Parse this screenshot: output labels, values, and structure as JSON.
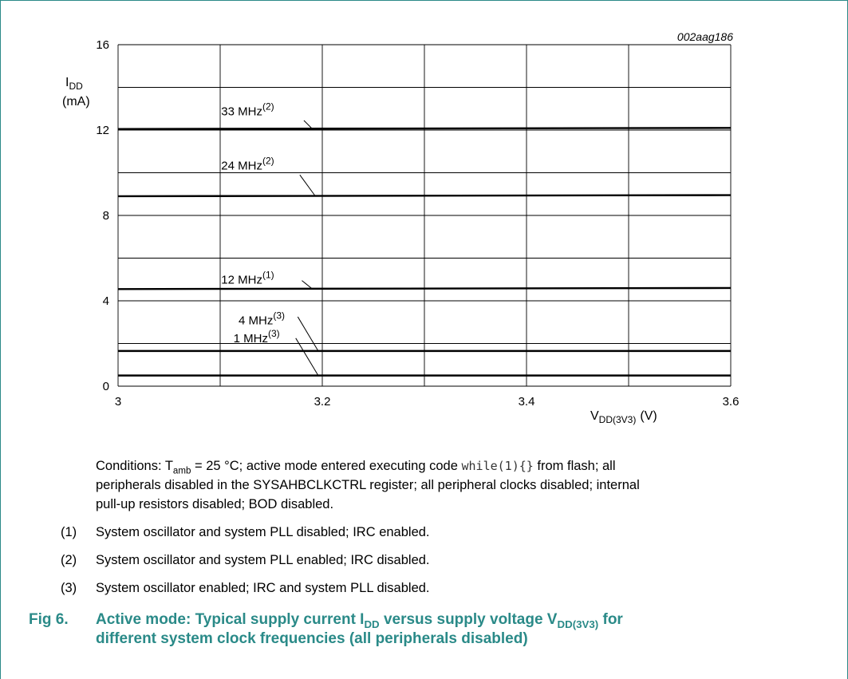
{
  "chart_data": {
    "type": "line",
    "figure_id": "002aag186",
    "ylabel_main": "I",
    "ylabel_sub": "DD",
    "ylabel_unit": "(mA)",
    "xlabel_main": "V",
    "xlabel_sub": "DD(3V3)",
    "xlabel_unit": "(V)",
    "xlim": [
      3.0,
      3.6
    ],
    "ylim": [
      0,
      16
    ],
    "grid": true,
    "x_ticks": [
      3.0,
      3.1,
      3.2,
      3.3,
      3.4,
      3.5,
      3.6
    ],
    "x_tick_labels": [
      "3",
      "",
      "3.2",
      "",
      "3.4",
      "",
      "3.6"
    ],
    "y_ticks": [
      0,
      2,
      4,
      6,
      8,
      10,
      12,
      14,
      16
    ],
    "y_tick_labels": [
      "0",
      "",
      "4",
      "",
      "8",
      "",
      "12",
      "",
      "16"
    ],
    "x": [
      3.0,
      3.6
    ],
    "series": [
      {
        "label": "33 MHz",
        "note": "(2)",
        "values": [
          12.05,
          12.1
        ]
      },
      {
        "label": "24 MHz",
        "note": "(2)",
        "values": [
          8.9,
          8.95
        ]
      },
      {
        "label": "12 MHz",
        "note": "(1)",
        "values": [
          4.55,
          4.6
        ]
      },
      {
        "label": "4 MHz",
        "note": "(3)",
        "values": [
          1.65,
          1.65
        ]
      },
      {
        "label": "1 MHz",
        "note": "(3)",
        "values": [
          0.5,
          0.5
        ]
      }
    ]
  },
  "conditions": {
    "line1_pre": "Conditions: T",
    "tamb_sub": "amb",
    "line1_mid": " = 25 °C; active mode entered executing code ",
    "code": "while(1){}",
    "line1_post": " from flash; all",
    "line2": "peripherals disabled in the SYSAHBCLKCTRL register; all peripheral clocks disabled; internal",
    "line3": "pull-up resistors disabled; BOD disabled."
  },
  "notes": [
    {
      "num": "(1)",
      "text": "System oscillator and system PLL disabled; IRC enabled."
    },
    {
      "num": "(2)",
      "text": "System oscillator and system PLL enabled; IRC disabled."
    },
    {
      "num": "(3)",
      "text": "System oscillator enabled; IRC and system PLL disabled."
    }
  ],
  "caption": {
    "fig": "Fig 6.",
    "l1_a": "Active mode: Typical supply current I",
    "l1_sub1": "DD",
    "l1_b": " versus supply voltage V",
    "l1_sub2": "DD(3V3)",
    "l1_c": " for",
    "l2": "different system clock frequencies (all peripherals disabled)"
  },
  "colors": {
    "frame": "#2a8a88",
    "caption": "#2a8a88",
    "lines": "#000000",
    "grid": "#000000"
  }
}
